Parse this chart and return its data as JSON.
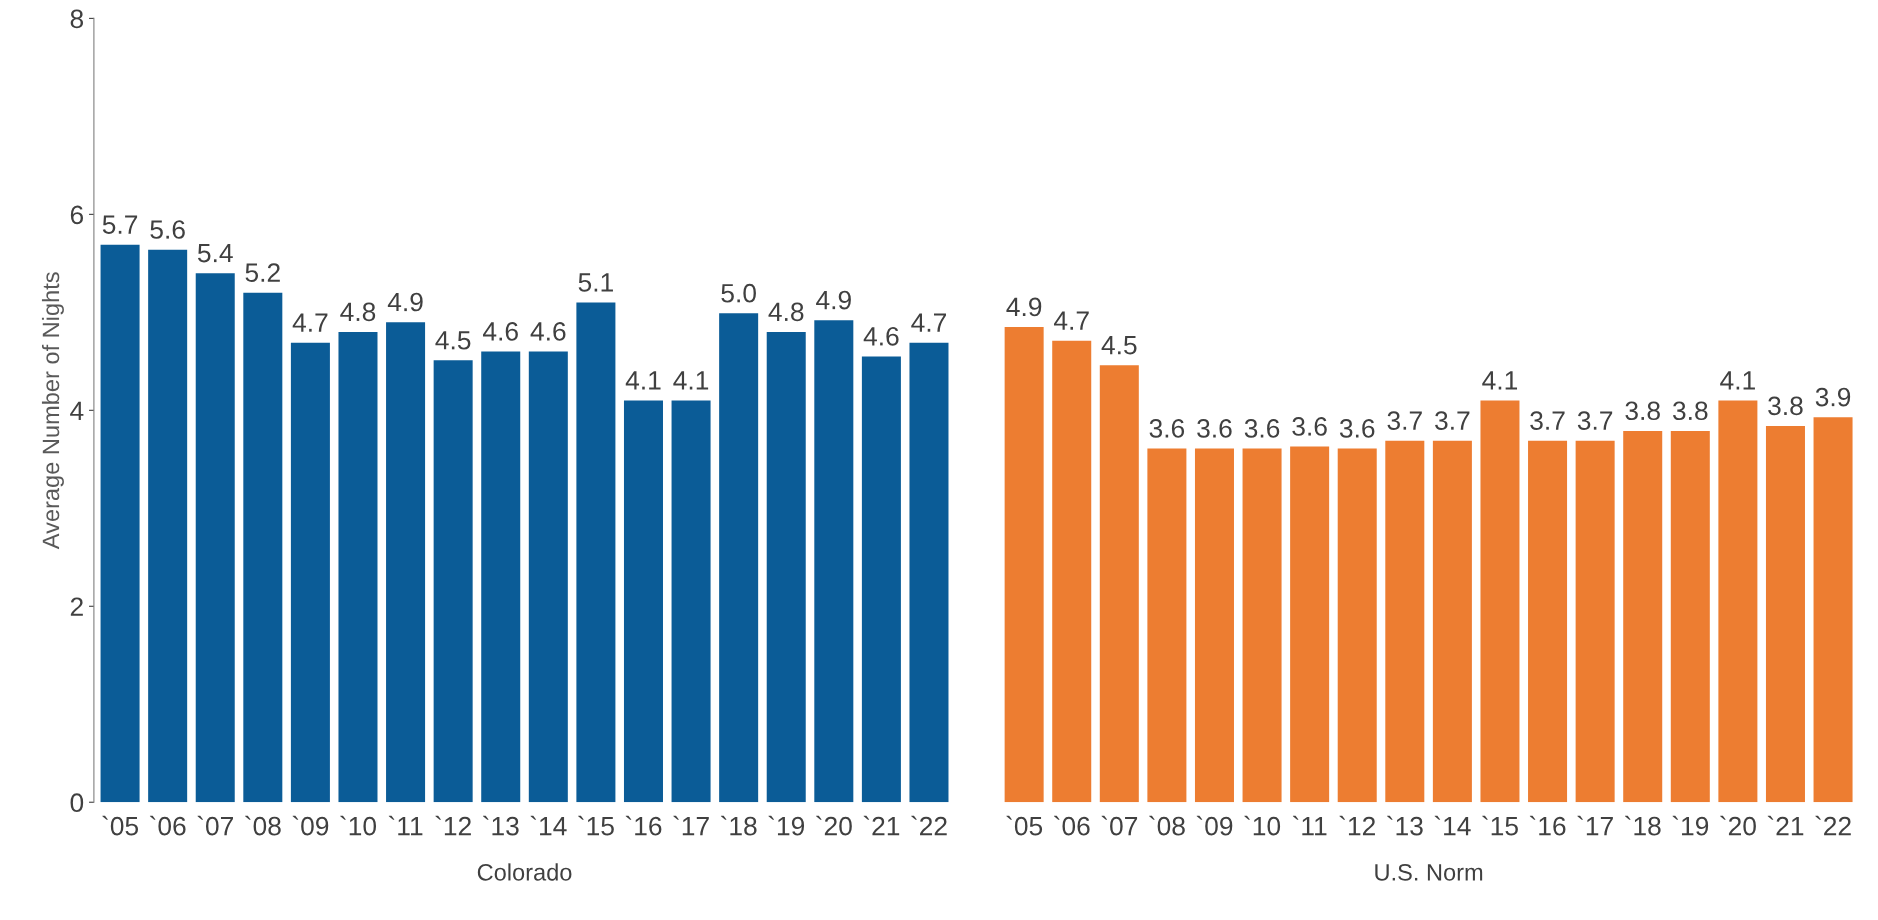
{
  "chart_data": {
    "type": "bar",
    "ylabel": "Average Number of Nights",
    "categories": [
      "`05",
      "`06",
      "`07",
      "`08",
      "`09",
      "`10",
      "`11",
      "`12",
      "`13",
      "`14",
      "`15",
      "`16",
      "`17",
      "`18",
      "`19",
      "`20",
      "`21",
      "`22",
      null,
      "`05",
      "`06",
      "`07",
      "`08",
      "`09",
      "`10",
      "`11",
      "`12",
      "`13",
      "`14",
      "`15",
      "`16",
      "`17",
      "`18",
      "`19",
      "`20",
      "`21",
      "`22"
    ],
    "series": [
      {
        "name": "Colorado",
        "color": "#0b5c97",
        "values": [
          5.69,
          5.64,
          5.4,
          5.2,
          4.69,
          4.8,
          4.9,
          4.51,
          4.6,
          4.6,
          5.1,
          4.1,
          4.1,
          4.99,
          4.8,
          4.92,
          4.55,
          4.69,
          null,
          null,
          null,
          null,
          null,
          null,
          null,
          null,
          null,
          null,
          null,
          null,
          null,
          null,
          null,
          null,
          null,
          null,
          null
        ],
        "value_labels": [
          "5.7",
          "5.6",
          "5.4",
          "5.2",
          "4.7",
          "4.8",
          "4.9",
          "4.5",
          "4.6",
          "4.6",
          "5.1",
          "4.1",
          "4.1",
          "5.0",
          "4.8",
          "4.9",
          "4.6",
          "4.7",
          null,
          null,
          null,
          null,
          null,
          null,
          null,
          null,
          null,
          null,
          null,
          null,
          null,
          null,
          null,
          null,
          null,
          null,
          null
        ]
      },
      {
        "name": "U.S. Norm",
        "color": "#ed7d31",
        "values": [
          null,
          null,
          null,
          null,
          null,
          null,
          null,
          null,
          null,
          null,
          null,
          null,
          null,
          null,
          null,
          null,
          null,
          null,
          null,
          4.85,
          4.71,
          4.46,
          3.61,
          3.61,
          3.61,
          3.63,
          3.61,
          3.69,
          3.69,
          4.1,
          3.69,
          3.69,
          3.79,
          3.79,
          4.1,
          3.84,
          3.93
        ],
        "value_labels": [
          null,
          null,
          null,
          null,
          null,
          null,
          null,
          null,
          null,
          null,
          null,
          null,
          null,
          null,
          null,
          null,
          null,
          null,
          null,
          "4.9",
          "4.7",
          "4.5",
          "3.6",
          "3.6",
          "3.6",
          "3.6",
          "3.6",
          "3.7",
          "3.7",
          "4.1",
          "3.7",
          "3.7",
          "3.8",
          "3.8",
          "4.1",
          "3.8",
          "3.9"
        ]
      }
    ],
    "ylim": [
      0,
      8
    ],
    "yticks": [
      0,
      2,
      4,
      6,
      8
    ],
    "grid": false,
    "legend": false
  }
}
